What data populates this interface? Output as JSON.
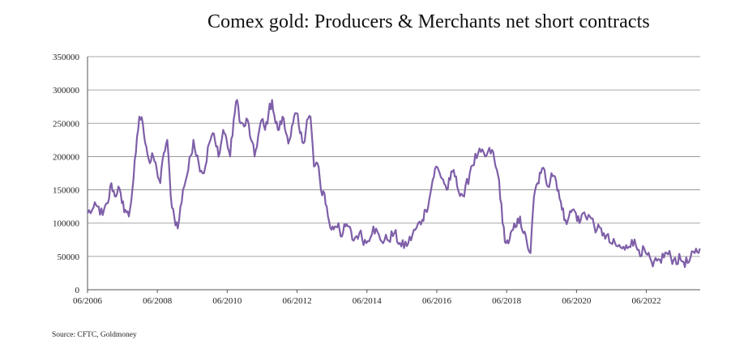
{
  "chart_data": {
    "type": "line",
    "title": "Comex gold: Producers & Merchants net short contracts",
    "source": "Source: CFTC, Goldmoney",
    "xlabel": "",
    "ylabel": "",
    "ylim": [
      0,
      350000
    ],
    "xlim": [
      "2006-06",
      "2023-12"
    ],
    "grid": "horizontal",
    "y_ticks": [
      "0",
      "50000",
      "100000",
      "150000",
      "200000",
      "250000",
      "300000",
      "350000"
    ],
    "x_ticks": [
      "06/2006",
      "06/2008",
      "06/2010",
      "06/2012",
      "06/2014",
      "06/2016",
      "06/2018",
      "06/2020",
      "06/2022"
    ],
    "series": [
      {
        "name": "Producers & Merchants net short",
        "color": "#7e5fa8",
        "x": [
          2006.42,
          2006.55,
          2006.7,
          2006.85,
          2007.0,
          2007.1,
          2007.2,
          2007.3,
          2007.4,
          2007.5,
          2007.6,
          2007.7,
          2007.8,
          2007.9,
          2008.0,
          2008.1,
          2008.2,
          2008.3,
          2008.4,
          2008.5,
          2008.6,
          2008.7,
          2008.8,
          2008.9,
          2009.0,
          2009.15,
          2009.3,
          2009.45,
          2009.6,
          2009.75,
          2009.9,
          2010.0,
          2010.1,
          2010.2,
          2010.3,
          2010.4,
          2010.5,
          2010.6,
          2010.7,
          2010.8,
          2010.9,
          2011.0,
          2011.1,
          2011.2,
          2011.3,
          2011.4,
          2011.5,
          2011.6,
          2011.7,
          2011.8,
          2011.9,
          2012.0,
          2012.1,
          2012.2,
          2012.3,
          2012.4,
          2012.5,
          2012.6,
          2012.7,
          2012.8,
          2012.9,
          2013.0,
          2013.1,
          2013.2,
          2013.3,
          2013.4,
          2013.5,
          2013.6,
          2013.7,
          2013.8,
          2013.9,
          2014.0,
          2014.2,
          2014.4,
          2014.6,
          2014.8,
          2015.0,
          2015.2,
          2015.4,
          2015.6,
          2015.8,
          2016.0,
          2016.1,
          2016.2,
          2016.3,
          2016.4,
          2016.5,
          2016.6,
          2016.7,
          2016.8,
          2016.9,
          2017.0,
          2017.2,
          2017.4,
          2017.6,
          2017.8,
          2018.0,
          2018.1,
          2018.2,
          2018.3,
          2018.4,
          2018.5,
          2018.6,
          2018.7,
          2018.8,
          2018.9,
          2019.0,
          2019.1,
          2019.2,
          2019.3,
          2019.4,
          2019.5,
          2019.6,
          2019.7,
          2019.8,
          2019.9,
          2020.0,
          2020.1,
          2020.2,
          2020.3,
          2020.4,
          2020.5,
          2020.6,
          2020.8,
          2021.0,
          2021.2,
          2021.4,
          2021.6,
          2021.8,
          2022.0,
          2022.2,
          2022.4,
          2022.6,
          2022.8,
          2023.0,
          2023.2,
          2023.4,
          2023.6,
          2023.8,
          2023.95
        ],
        "values": [
          115000,
          120000,
          125000,
          112000,
          130000,
          160000,
          140000,
          155000,
          130000,
          120000,
          110000,
          150000,
          205000,
          260000,
          250000,
          215000,
          190000,
          200000,
          180000,
          160000,
          205000,
          225000,
          140000,
          110000,
          92000,
          150000,
          180000,
          225000,
          190000,
          175000,
          220000,
          235000,
          215000,
          205000,
          240000,
          225000,
          200000,
          255000,
          285000,
          250000,
          245000,
          255000,
          225000,
          200000,
          230000,
          255000,
          240000,
          265000,
          285000,
          250000,
          240000,
          260000,
          235000,
          225000,
          250000,
          265000,
          235000,
          220000,
          255000,
          260000,
          185000,
          190000,
          150000,
          145000,
          110000,
          90000,
          95000,
          100000,
          80000,
          95000,
          95000,
          75000,
          85000,
          70000,
          95000,
          75000,
          75000,
          85000,
          65000,
          70000,
          90000,
          105000,
          120000,
          135000,
          165000,
          185000,
          175000,
          165000,
          150000,
          165000,
          180000,
          155000,
          140000,
          185000,
          205000,
          200000,
          210000,
          185000,
          165000,
          100000,
          70000,
          75000,
          90000,
          95000,
          110000,
          85000,
          70000,
          55000,
          140000,
          160000,
          175000,
          180000,
          155000,
          175000,
          170000,
          150000,
          120000,
          105000,
          110000,
          120000,
          115000,
          100000,
          115000,
          110000,
          90000,
          85000,
          70000,
          65000,
          60000,
          75000,
          60000,
          55000,
          35000,
          45000,
          55000,
          45000,
          45000,
          40000,
          55000,
          62000
        ]
      }
    ]
  }
}
